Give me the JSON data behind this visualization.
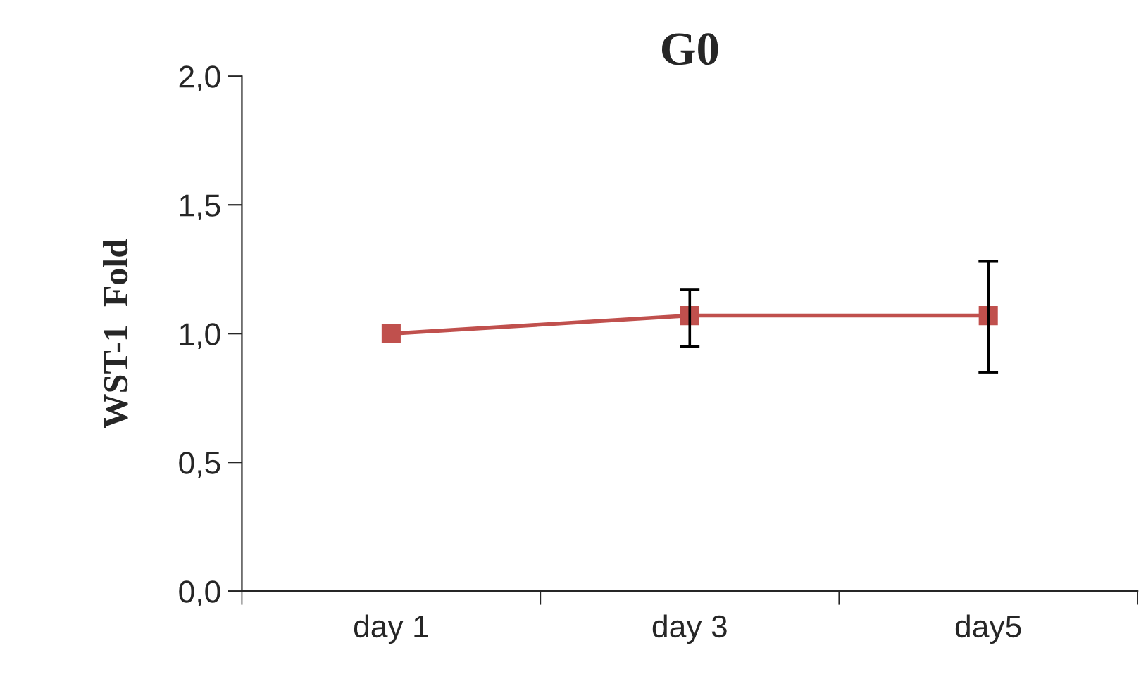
{
  "chart_data": {
    "type": "line",
    "title": "G0",
    "ylabel": "WST-1  Fold",
    "categories": [
      "day 1",
      "day 3",
      "day5"
    ],
    "series": [
      {
        "color": "#c0504d",
        "values": [
          1.0,
          1.07,
          1.07
        ],
        "errors": [
          null,
          [
            0.95,
            1.17
          ],
          [
            0.85,
            1.28
          ]
        ]
      }
    ],
    "ylim": [
      0,
      2
    ],
    "yticks": [
      {
        "value": 0,
        "label": "0,0"
      },
      {
        "value": 0.5,
        "label": "0,5"
      },
      {
        "value": 1,
        "label": "1,0"
      },
      {
        "value": 1.5,
        "label": "1,5"
      },
      {
        "value": 2,
        "label": "2,0"
      }
    ],
    "grid": false,
    "legend": false,
    "marker": "square",
    "line_style": "solid"
  }
}
